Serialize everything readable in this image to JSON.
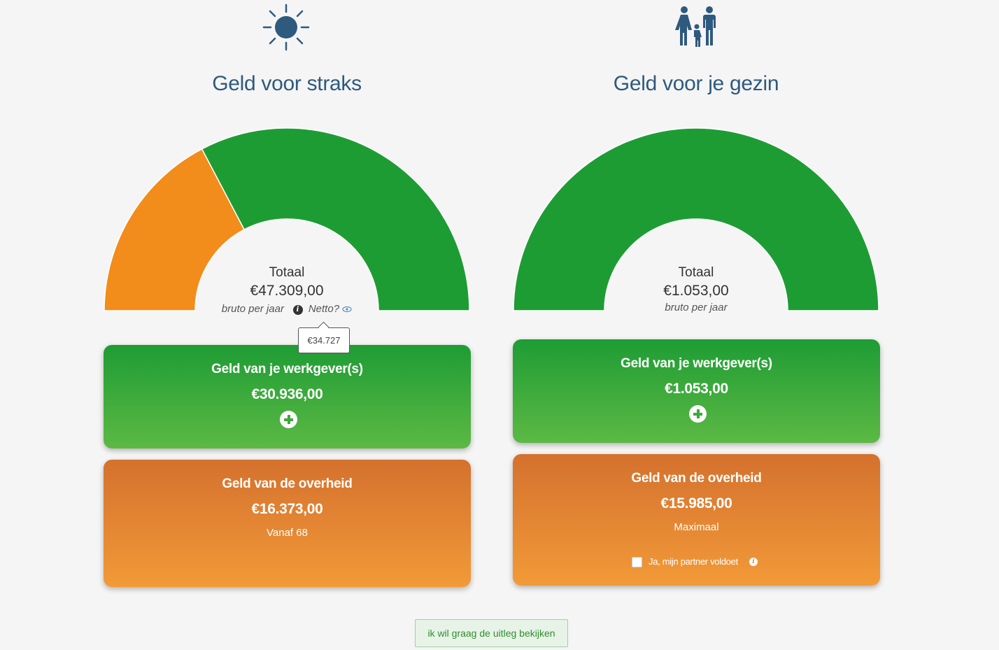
{
  "left": {
    "icon": "sun-icon",
    "title": "Geld voor straks",
    "gauge": {
      "label": "Totaal",
      "amount": "€47.309,00",
      "sub": "bruto per jaar",
      "netto_label": "Netto?",
      "netto_tooltip": "€34.727",
      "segments": [
        {
          "name": "overheid",
          "value": 16373,
          "color": "#f28c1a"
        },
        {
          "name": "werkgever",
          "value": 30936,
          "color": "#1e9c34"
        }
      ]
    },
    "employer_card": {
      "title": "Geld van je werkgever(s)",
      "amount": "€30.936,00"
    },
    "government_card": {
      "title": "Geld van de overheid",
      "amount": "€16.373,00",
      "note": "Vanaf 68"
    }
  },
  "right": {
    "icon": "family-icon",
    "title": "Geld voor je gezin",
    "gauge": {
      "label": "Totaal",
      "amount": "€1.053,00",
      "sub": "bruto per jaar",
      "segments": [
        {
          "name": "werkgever",
          "value": 1053,
          "color": "#1e9c34"
        }
      ]
    },
    "employer_card": {
      "title": "Geld van je werkgever(s)",
      "amount": "€1.053,00"
    },
    "government_card": {
      "title": "Geld van de overheid",
      "amount": "€15.985,00",
      "note": "Maximaal",
      "checkbox_label": "Ja, mijn partner voldoet"
    }
  },
  "explain_button": "ik wil graag de uitleg bekijken",
  "colors": {
    "title": "#2e5a7e",
    "green": "#1e9c34",
    "orange": "#f28c1a"
  }
}
